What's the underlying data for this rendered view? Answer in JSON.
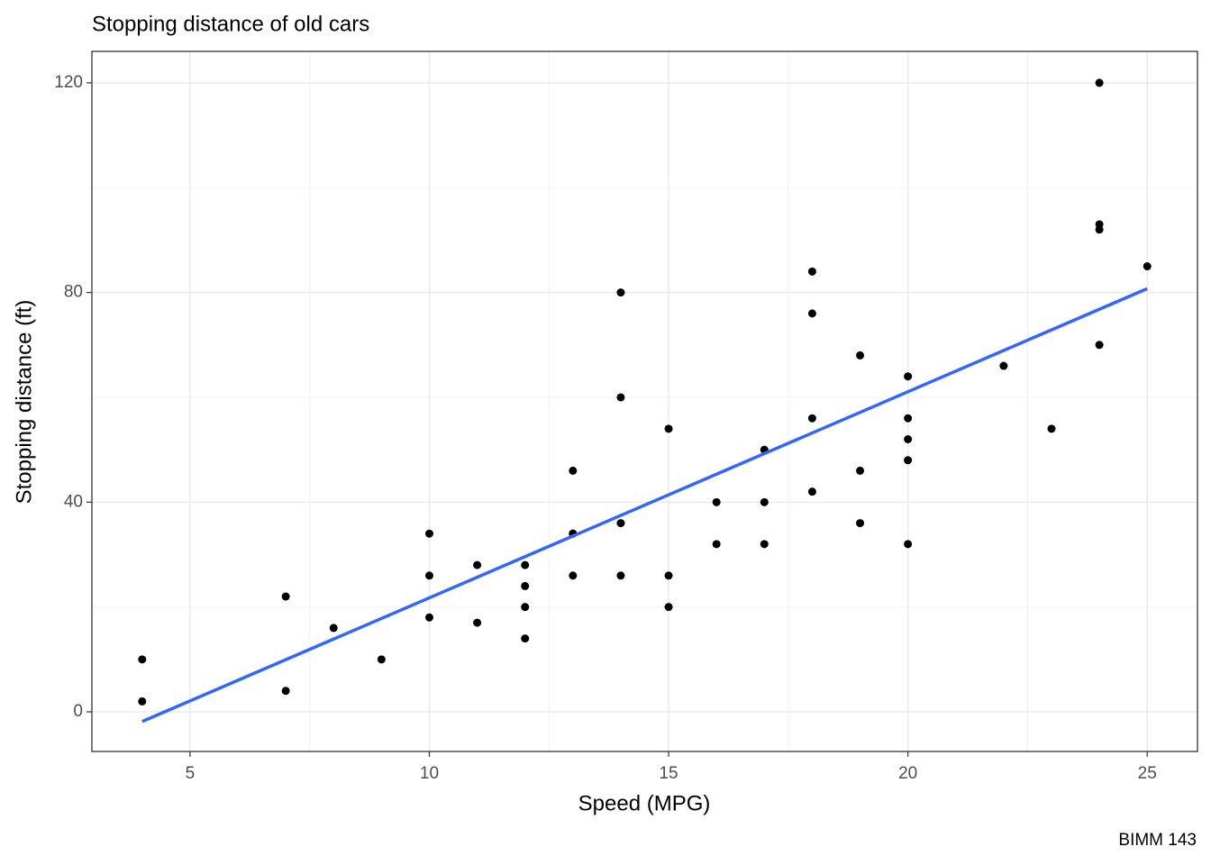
{
  "chart_data": {
    "type": "scatter",
    "title": "Stopping distance of old cars",
    "x_label": "Speed (MPG)",
    "y_label": "Stopping distance (ft)",
    "caption": "BIMM 143",
    "series": [
      {
        "name": "points",
        "type": "scatter",
        "color": "#000000",
        "x": [
          4,
          4,
          7,
          7,
          8,
          9,
          10,
          10,
          10,
          11,
          11,
          12,
          12,
          12,
          12,
          13,
          13,
          13,
          13,
          14,
          14,
          14,
          14,
          15,
          15,
          15,
          16,
          16,
          17,
          17,
          17,
          18,
          18,
          18,
          18,
          19,
          19,
          19,
          20,
          20,
          20,
          20,
          20,
          22,
          23,
          24,
          24,
          24,
          24,
          25
        ],
        "values": [
          2,
          10,
          4,
          22,
          16,
          10,
          18,
          26,
          34,
          17,
          28,
          14,
          20,
          24,
          28,
          26,
          34,
          34,
          46,
          26,
          36,
          60,
          80,
          20,
          26,
          54,
          32,
          40,
          32,
          40,
          50,
          42,
          56,
          76,
          84,
          36,
          46,
          68,
          32,
          48,
          52,
          56,
          64,
          66,
          54,
          70,
          92,
          93,
          120,
          85
        ]
      },
      {
        "name": "fit",
        "type": "line",
        "color": "#3366FF",
        "x": [
          4,
          25
        ],
        "values": [
          -1.85,
          80.73
        ]
      }
    ],
    "xlim": [
      2.95,
      26.05
    ],
    "ylim": [
      -7.56,
      126.0
    ],
    "xticks": [
      5,
      10,
      15,
      20,
      25
    ],
    "yticks": [
      0,
      40,
      80,
      120
    ],
    "xminorticks": [
      7.5,
      12.5,
      17.5,
      22.5
    ],
    "yminorticks": [
      20,
      60,
      100
    ],
    "grid": true
  }
}
